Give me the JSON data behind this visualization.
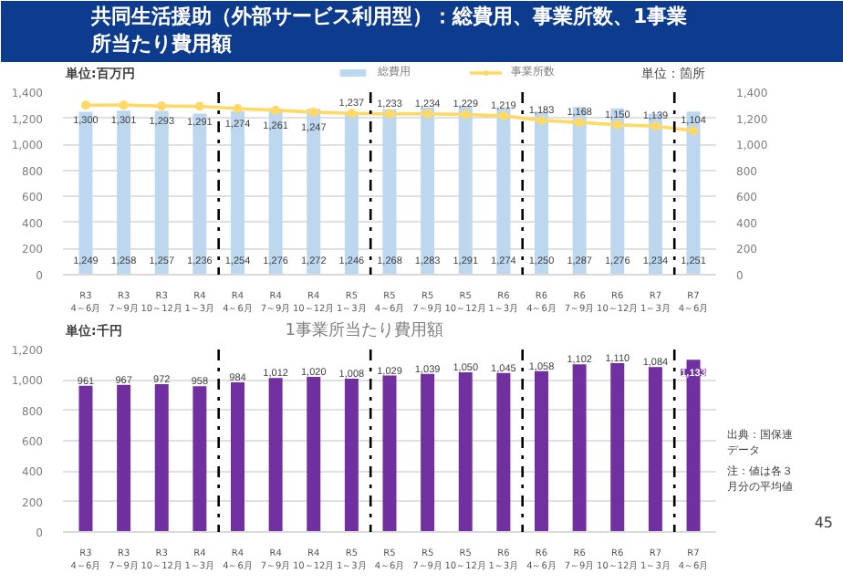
{
  "chart_data": [
    {
      "type": "bar",
      "title": "共同生活援助（外部サービス利用型）：総費用、事業所数、1事業所当たり費用額",
      "ylabel": "単位:百万円",
      "y2label": "単位：箇所",
      "categories": [
        "R3\n4～6月",
        "R3\n7～9月",
        "R3\n10～12月",
        "R4\n1～3月",
        "R4\n4～6月",
        "R4\n7～9月",
        "R4\n10～12月",
        "R5\n1～3月",
        "R5\n4～6月",
        "R5\n7～9月",
        "R5\n10～12月",
        "R6\n1～3月",
        "R6\n4～6月",
        "R6\n7～9月",
        "R6\n10～12月",
        "R7\n1～3月",
        "R7\n4～6月"
      ],
      "series": [
        {
          "name": "総費用",
          "type": "bar",
          "color": "#bdd7ee",
          "values": [
            1249,
            1258,
            1257,
            1236,
            1254,
            1276,
            1272,
            1246,
            1268,
            1283,
            1291,
            1274,
            1250,
            1287,
            1276,
            1234,
            1251
          ],
          "value_labels": [
            "1,249",
            "1,258",
            "1,257",
            "1,236",
            "1,254",
            "1,276",
            "1,272",
            "1,246",
            "1,268",
            "1,283",
            "1,291",
            "1,274",
            "1,250",
            "1,287",
            "1,276",
            "1,234",
            "1,251"
          ]
        },
        {
          "name": "事業所数",
          "type": "line",
          "axis": "y2",
          "color": "#ffd966",
          "values": [
            1300,
            1301,
            1293,
            1291,
            1274,
            1261,
            1247,
            1237,
            1233,
            1234,
            1229,
            1219,
            1183,
            1168,
            1150,
            1139,
            1104
          ],
          "value_labels": [
            "1,300",
            "1,301",
            "1,293",
            "1,291",
            "1,274",
            "1,261",
            "1,247",
            "1,237",
            "1,233",
            "1,234",
            "1,229",
            "1,219",
            "1,183",
            "1,168",
            "1,150",
            "1,139",
            "1,104"
          ]
        }
      ],
      "ylim": [
        0,
        1400
      ],
      "yticks": [
        {
          "value": 0,
          "label": "0"
        },
        {
          "value": 200,
          "label": "200"
        },
        {
          "value": 400,
          "label": "400"
        },
        {
          "value": 600,
          "label": "600"
        },
        {
          "value": 800,
          "label": "800"
        },
        {
          "value": 1000,
          "label": "1,000"
        },
        {
          "value": 1200,
          "label": "1,200"
        },
        {
          "value": 1400,
          "label": "1,400"
        }
      ],
      "y2lim": [
        0,
        1400
      ],
      "y2ticks": [
        {
          "value": 0,
          "label": "0"
        },
        {
          "value": 200,
          "label": "200"
        },
        {
          "value": 400,
          "label": "400"
        },
        {
          "value": 600,
          "label": "600"
        },
        {
          "value": 800,
          "label": "800"
        },
        {
          "value": 1000,
          "label": "1,000"
        },
        {
          "value": 1200,
          "label": "1,200"
        },
        {
          "value": 1400,
          "label": "1,400"
        }
      ],
      "grid": "y",
      "legend": "top",
      "marker": "circle"
    },
    {
      "type": "bar",
      "title": "1事業所当たり費用額",
      "ylabel": "単位:千円",
      "categories": [
        "R3\n4～6月",
        "R3\n7～9月",
        "R3\n10～12月",
        "R4\n1～3月",
        "R4\n4～6月",
        "R4\n7～9月",
        "R4\n10～12月",
        "R5\n1～3月",
        "R5\n4～6月",
        "R5\n7～9月",
        "R5\n10～12月",
        "R6\n1～3月",
        "R6\n4～6月",
        "R6\n7～9月",
        "R6\n10～12月",
        "R7\n1～3月",
        "R7\n4～6月"
      ],
      "values": [
        961,
        967,
        972,
        958,
        984,
        1012,
        1020,
        1008,
        1029,
        1039,
        1050,
        1045,
        1058,
        1102,
        1110,
        1084,
        1133
      ],
      "color": "#7030a0",
      "value_labels": [
        "961",
        "967",
        "972",
        "958",
        "984",
        "1,012",
        "1,020",
        "1,008",
        "1,029",
        "1,039",
        "1,050",
        "1,045",
        "1,058",
        "1,102",
        "1,110",
        "1,084",
        "1,133"
      ],
      "ylim": [
        0,
        1200
      ],
      "yticks": [
        {
          "value": 0,
          "label": "0"
        },
        {
          "value": 200,
          "label": "200"
        },
        {
          "value": 400,
          "label": "400"
        },
        {
          "value": 600,
          "label": "600"
        },
        {
          "value": 800,
          "label": "800"
        },
        {
          "value": 1000,
          "label": "1,000"
        },
        {
          "value": 1200,
          "label": "1,200"
        }
      ],
      "annotations": [
        "出典：国保連データ",
        "注：値は各３月分の平均値",
        "45"
      ],
      "grid": "y"
    }
  ]
}
